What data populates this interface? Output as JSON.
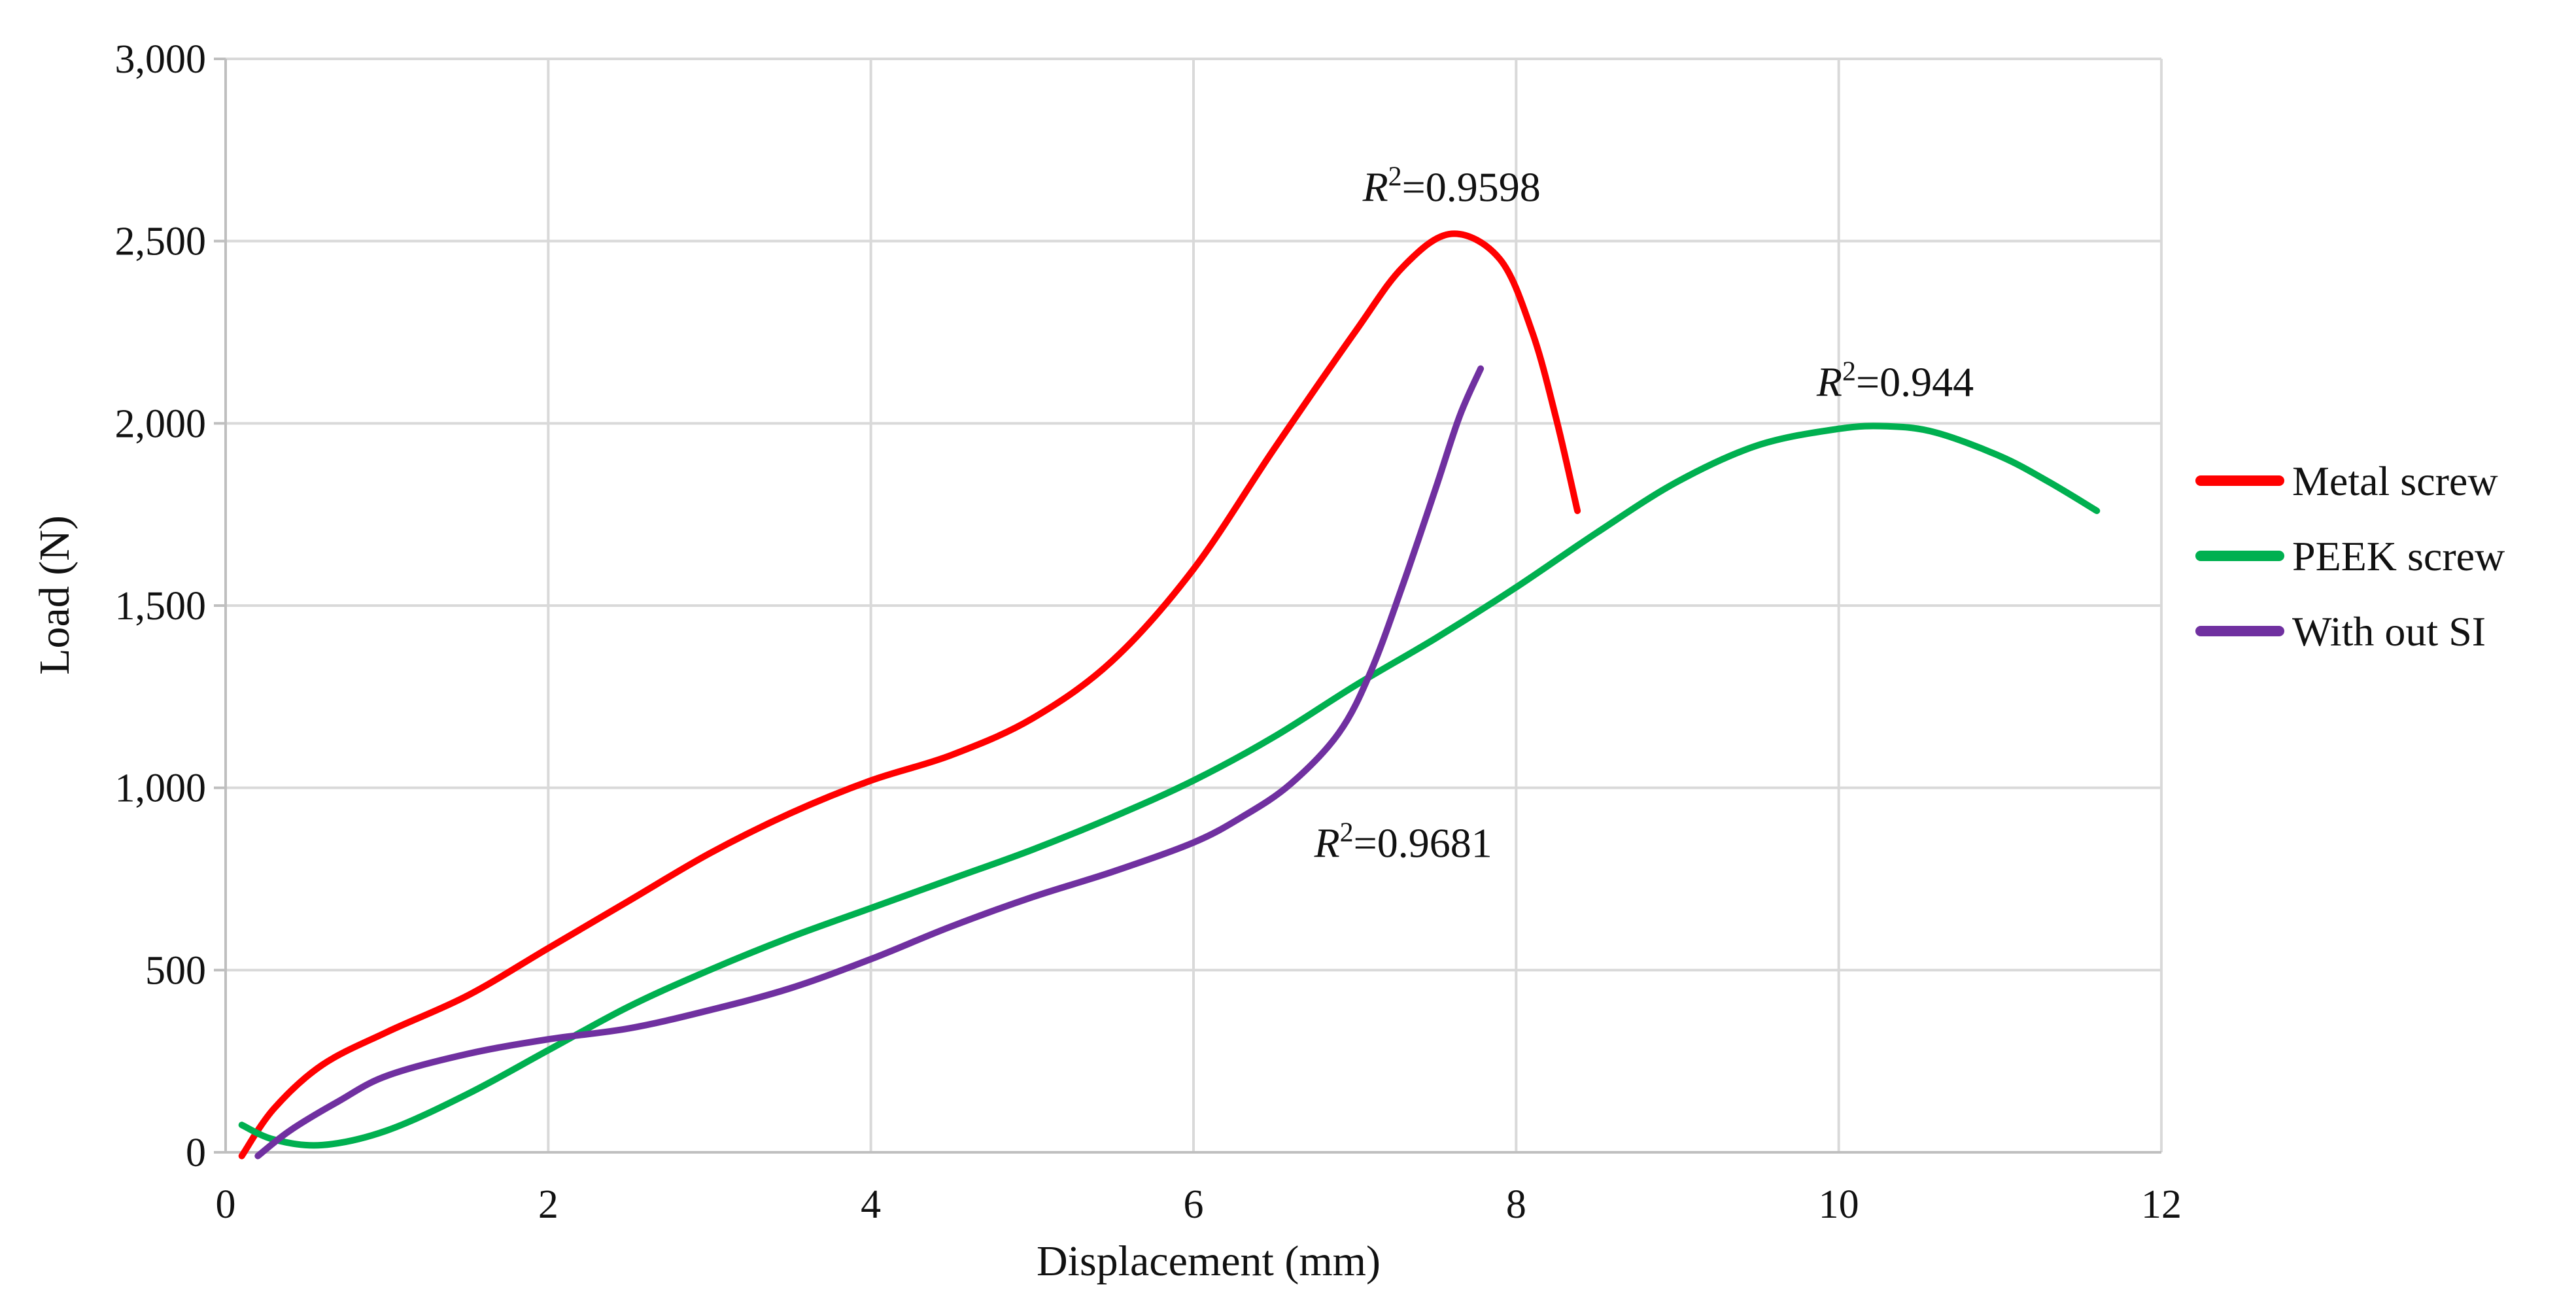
{
  "chart_data": {
    "type": "line",
    "title": "",
    "xlabel": "Displacement (mm)",
    "ylabel": "Load (N)",
    "xlim": [
      0,
      12
    ],
    "ylim": [
      0,
      3000
    ],
    "x_ticks": [
      0,
      2,
      4,
      6,
      8,
      10,
      12
    ],
    "y_ticks": [
      0,
      500,
      1000,
      1500,
      2000,
      2500,
      3000
    ],
    "x_tick_labels": [
      "0",
      "2",
      "4",
      "6",
      "8",
      "10",
      "12"
    ],
    "y_tick_labels": [
      "0",
      "500",
      "1,000",
      "1,500",
      "2,000",
      "2,500",
      "3,000"
    ],
    "grid": true,
    "legend_position": "right",
    "series": [
      {
        "name": "Metal screw",
        "color": "#ff0000",
        "points": [
          [
            0.1,
            -10
          ],
          [
            0.3,
            120
          ],
          [
            0.6,
            240
          ],
          [
            1.0,
            330
          ],
          [
            1.5,
            430
          ],
          [
            2.0,
            560
          ],
          [
            2.5,
            690
          ],
          [
            3.0,
            820
          ],
          [
            3.5,
            930
          ],
          [
            4.0,
            1020
          ],
          [
            4.5,
            1090
          ],
          [
            5.0,
            1190
          ],
          [
            5.5,
            1350
          ],
          [
            6.0,
            1600
          ],
          [
            6.5,
            1930
          ],
          [
            7.0,
            2250
          ],
          [
            7.3,
            2430
          ],
          [
            7.6,
            2520
          ],
          [
            7.9,
            2450
          ],
          [
            8.1,
            2250
          ],
          [
            8.25,
            2010
          ],
          [
            8.38,
            1760
          ]
        ]
      },
      {
        "name": "PEEK screw",
        "color": "#00b050",
        "points": [
          [
            0.1,
            75
          ],
          [
            0.3,
            35
          ],
          [
            0.6,
            20
          ],
          [
            1.0,
            60
          ],
          [
            1.5,
            160
          ],
          [
            2.0,
            280
          ],
          [
            2.5,
            400
          ],
          [
            3.0,
            500
          ],
          [
            3.5,
            590
          ],
          [
            4.0,
            670
          ],
          [
            4.5,
            750
          ],
          [
            5.0,
            830
          ],
          [
            5.5,
            920
          ],
          [
            6.0,
            1020
          ],
          [
            6.5,
            1140
          ],
          [
            7.0,
            1280
          ],
          [
            7.5,
            1410
          ],
          [
            8.0,
            1550
          ],
          [
            8.5,
            1700
          ],
          [
            9.0,
            1840
          ],
          [
            9.5,
            1940
          ],
          [
            10.0,
            1985
          ],
          [
            10.3,
            1992
          ],
          [
            10.6,
            1975
          ],
          [
            11.0,
            1910
          ],
          [
            11.3,
            1840
          ],
          [
            11.6,
            1760
          ]
        ]
      },
      {
        "name": "With out SI",
        "color": "#7030a0",
        "points": [
          [
            0.2,
            -10
          ],
          [
            0.4,
            60
          ],
          [
            0.7,
            140
          ],
          [
            1.0,
            210
          ],
          [
            1.5,
            270
          ],
          [
            2.0,
            310
          ],
          [
            2.5,
            340
          ],
          [
            3.0,
            390
          ],
          [
            3.5,
            450
          ],
          [
            4.0,
            530
          ],
          [
            4.5,
            620
          ],
          [
            5.0,
            700
          ],
          [
            5.5,
            770
          ],
          [
            6.0,
            850
          ],
          [
            6.3,
            920
          ],
          [
            6.6,
            1010
          ],
          [
            6.9,
            1150
          ],
          [
            7.1,
            1320
          ],
          [
            7.3,
            1560
          ],
          [
            7.5,
            1820
          ],
          [
            7.65,
            2020
          ],
          [
            7.78,
            2150
          ]
        ]
      }
    ],
    "annotations": [
      {
        "prefix": "R",
        "sup": "2",
        "text": "=0.9598",
        "series": "Metal screw",
        "at_data": [
          7.6,
          2610
        ]
      },
      {
        "prefix": "R",
        "sup": "2",
        "text": "=0.944",
        "series": "PEEK screw",
        "at_data": [
          10.35,
          2075
        ]
      },
      {
        "prefix": "R",
        "sup": "2",
        "text": "=0.9681",
        "series": "With out SI",
        "at_data": [
          7.3,
          810
        ]
      }
    ]
  }
}
